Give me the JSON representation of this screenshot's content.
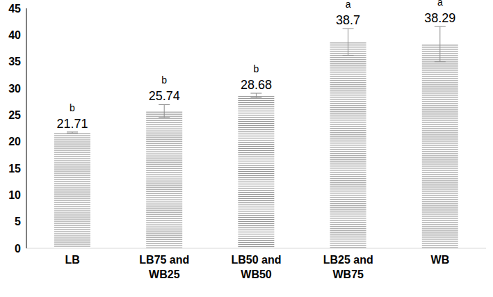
{
  "chart_data": {
    "type": "bar",
    "categories": [
      "LB",
      "LB75 and WB25",
      "LB50 and WB50",
      "LB25 and WB75",
      "WB"
    ],
    "values": [
      21.71,
      25.74,
      28.68,
      38.7,
      38.29
    ],
    "errors": [
      0.1,
      1.2,
      0.4,
      2.5,
      3.3
    ],
    "significance": [
      "b",
      "b",
      "b",
      "a",
      "a"
    ],
    "color": "#8c8c8c",
    "ylim": [
      0,
      45
    ],
    "yticks": [
      0,
      5,
      10,
      15,
      20,
      25,
      30,
      35,
      40,
      45
    ],
    "grid": false,
    "data_labels": true
  }
}
